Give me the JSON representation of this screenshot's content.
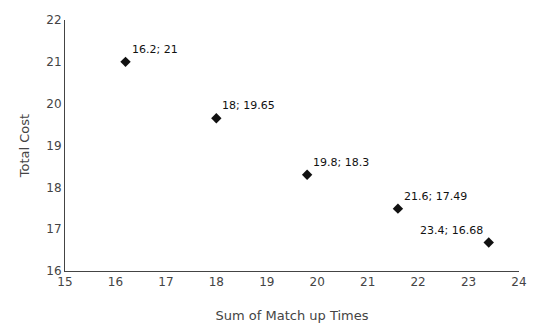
{
  "chart_data": {
    "type": "scatter",
    "x": [
      16.2,
      18.0,
      19.8,
      21.6,
      23.4
    ],
    "values": [
      21.0,
      19.65,
      18.3,
      17.49,
      16.68
    ],
    "annotations": [
      {
        "x": 16.2,
        "y": 21.0,
        "text": "16.2; 21"
      },
      {
        "x": 18.0,
        "y": 19.65,
        "text": "18; 19.65"
      },
      {
        "x": 19.8,
        "y": 18.3,
        "text": "19.8; 18.3"
      },
      {
        "x": 21.6,
        "y": 17.49,
        "text": "21.6; 17.49"
      },
      {
        "x": 23.4,
        "y": 16.68,
        "text": "23.4; 16.68"
      }
    ],
    "xlabel": "Sum of Match up Times",
    "ylabel": "Total Cost",
    "xlim": [
      15,
      24
    ],
    "ylim": [
      16,
      22
    ],
    "xticks": [
      15,
      16,
      17,
      18,
      19,
      20,
      21,
      22,
      23,
      24
    ],
    "yticks": [
      16,
      17,
      18,
      19,
      20,
      21,
      22
    ],
    "marker": "diamond",
    "color": "#111111",
    "grid": false
  }
}
